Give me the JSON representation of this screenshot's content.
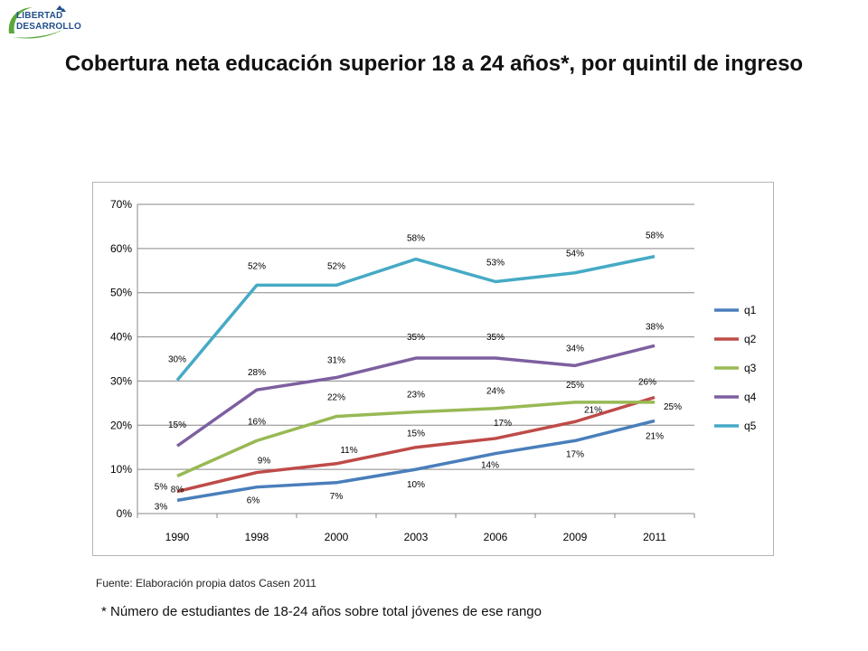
{
  "logo": {
    "line1": "LIBERTAD",
    "line2": "DESARROLLO"
  },
  "title": "Cobertura neta educación superior 18 a 24 años*, por quintil de ingreso",
  "source": "Fuente: Elaboración propia datos Casen 2011",
  "footnote": "* Número de estudiantes de 18-24 años sobre total jóvenes de ese rango",
  "chart_data": {
    "type": "line",
    "categories": [
      "1990",
      "1998",
      "2000",
      "2003",
      "2006",
      "2009",
      "2011"
    ],
    "ylim": [
      0,
      70
    ],
    "yticks": [
      "0%",
      "10%",
      "20%",
      "30%",
      "40%",
      "50%",
      "60%",
      "70%"
    ],
    "grid": true,
    "legend": "right",
    "series": [
      {
        "name": "q1",
        "color": "#4a7ebb",
        "values": [
          3,
          6,
          7,
          10,
          13.6,
          16.5,
          21
        ],
        "labels": [
          "3%",
          "6%",
          "7%",
          "10%",
          "14%",
          "17%",
          "21%"
        ]
      },
      {
        "name": "q2",
        "color": "#be4b48",
        "values": [
          5,
          9.3,
          11.3,
          15,
          17,
          20.8,
          26.3
        ],
        "labels": [
          "5%",
          "9%",
          "11%",
          "15%",
          "17%",
          "21%",
          "26%"
        ]
      },
      {
        "name": "q3",
        "color": "#98b954",
        "values": [
          8.5,
          16.5,
          22,
          23,
          23.8,
          25.2,
          25.2
        ],
        "labels": [
          "8%",
          "16%",
          "22%",
          "23%",
          "24%",
          "25%",
          "25%"
        ]
      },
      {
        "name": "q4",
        "color": "#7d5fa0",
        "values": [
          15.3,
          28,
          30.8,
          35.2,
          35.2,
          33.5,
          38
        ],
        "labels": [
          "15%",
          "28%",
          "31%",
          "35%",
          "35%",
          "34%",
          "38%"
        ]
      },
      {
        "name": "q5",
        "color": "#46aac5",
        "values": [
          30.2,
          51.7,
          51.7,
          57.6,
          52.5,
          54.5,
          58.2
        ],
        "labels": [
          "30%",
          "52%",
          "52%",
          "58%",
          "53%",
          "54%",
          "58%"
        ]
      }
    ]
  }
}
